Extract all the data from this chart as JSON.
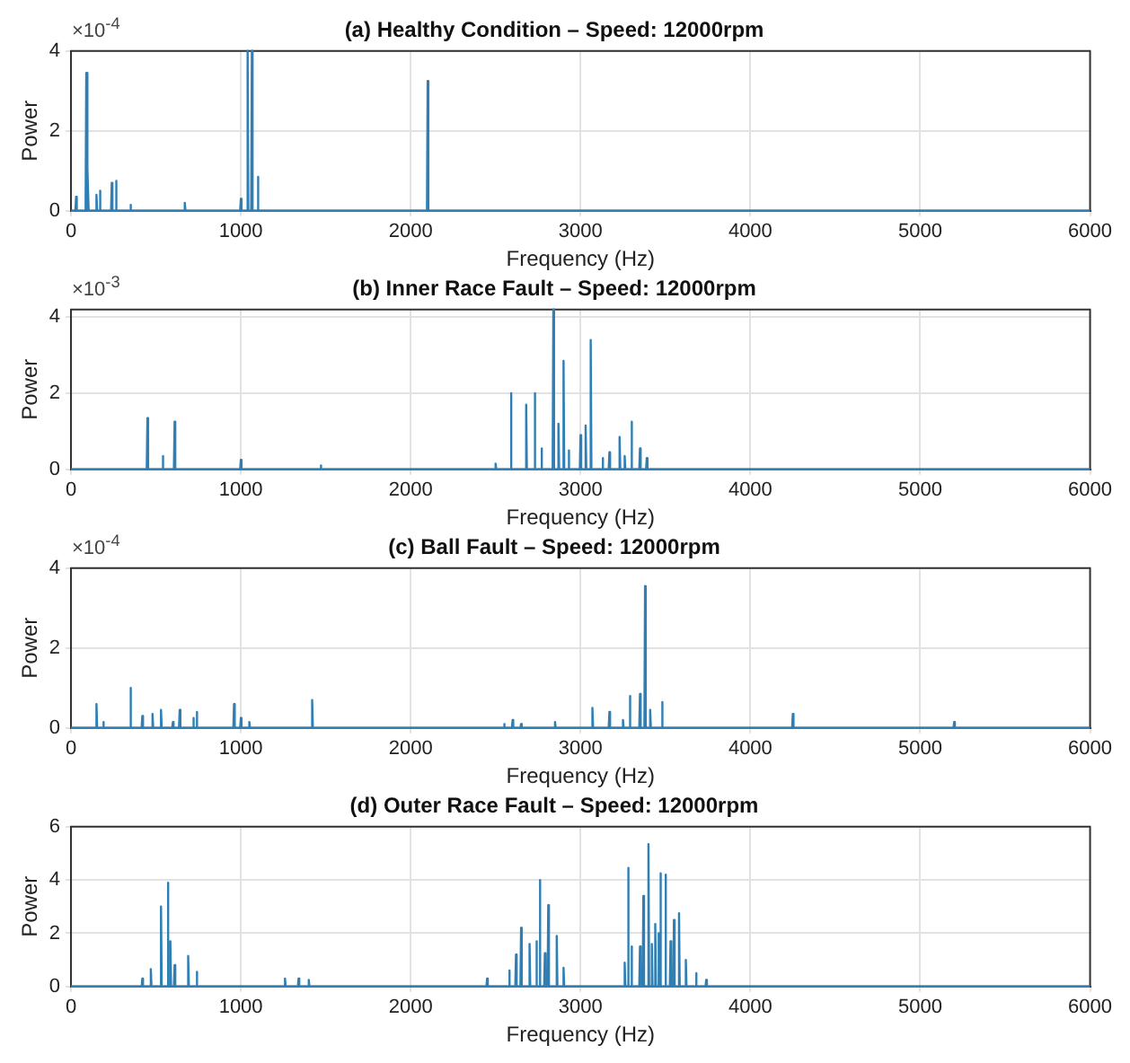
{
  "chart_data": [
    {
      "type": "line",
      "title": "(a) Healthy Condition – Speed: 12000rpm",
      "xlabel": "Frequency (Hz)",
      "ylabel": "Power",
      "annotations": [
        "×10$^{-4}$"
      ],
      "xlim": [
        0,
        6000
      ],
      "xticks": [
        0,
        1000,
        2000,
        3000,
        4000,
        5000,
        6000
      ],
      "ylim": [
        0,
        4
      ],
      "yticks": [
        0,
        2,
        4
      ],
      "grid": true,
      "x": [
        0,
        26,
        30,
        34,
        86,
        90,
        94,
        96,
        100,
        104,
        146,
        150,
        154,
        166,
        170,
        174,
        236,
        240,
        244,
        261,
        265,
        269,
        346,
        350,
        354,
        666,
        670,
        674,
        996,
        1000,
        1004,
        1036,
        1040,
        1044,
        1061,
        1065,
        1069,
        1096,
        1100,
        1104,
        2096,
        2100,
        2104,
        6000
      ],
      "series": [
        {
          "color": "#2f7fb5",
          "values": [
            0,
            0,
            0.35,
            0,
            0,
            3.45,
            0,
            0,
            1.05,
            0,
            0,
            0.4,
            0,
            0,
            0.5,
            0,
            0,
            0.7,
            0,
            0,
            0.75,
            0,
            0,
            0.15,
            0,
            0,
            0.2,
            0,
            0,
            0.3,
            0,
            0,
            4,
            0,
            0,
            4,
            0,
            0,
            0.85,
            0,
            0,
            3.25,
            0,
            0
          ]
        }
      ]
    },
    {
      "type": "line",
      "title": "(b) Inner Race Fault – Speed: 12000rpm",
      "xlabel": "Frequency (Hz)",
      "ylabel": "Power",
      "annotations": [
        "×10$^{-3}$"
      ],
      "xlim": [
        0,
        6000
      ],
      "xticks": [
        0,
        1000,
        2000,
        3000,
        4000,
        5000,
        6000
      ],
      "ylim": [
        0,
        4.2
      ],
      "yticks": [
        0,
        2,
        4
      ],
      "grid": true,
      "x": [
        0,
        446,
        450,
        454,
        536,
        540,
        544,
        606,
        610,
        614,
        996,
        1000,
        1004,
        1466,
        1470,
        1474,
        2496,
        2500,
        2504,
        2586,
        2590,
        2594,
        2676,
        2680,
        2684,
        2726,
        2730,
        2734,
        2766,
        2770,
        2774,
        2836,
        2840,
        2844,
        2866,
        2870,
        2874,
        2896,
        2900,
        2904,
        2926,
        2930,
        2934,
        2996,
        3000,
        3004,
        3026,
        3030,
        3034,
        3056,
        3060,
        3064,
        3126,
        3130,
        3134,
        3166,
        3170,
        3174,
        3226,
        3230,
        3234,
        3256,
        3260,
        3264,
        3296,
        3300,
        3304,
        3346,
        3350,
        3354,
        3386,
        3390,
        3394,
        6000
      ],
      "series": [
        {
          "color": "#2f7fb5",
          "values": [
            0,
            0,
            1.35,
            0,
            0,
            0.35,
            0,
            0,
            1.25,
            0,
            0,
            0.25,
            0,
            0,
            0.1,
            0,
            0,
            0.15,
            0,
            0,
            2.0,
            0,
            0,
            1.7,
            0,
            0,
            2.0,
            0,
            0,
            0.55,
            0,
            0,
            4.2,
            0,
            0,
            1.2,
            0,
            0,
            2.85,
            0,
            0,
            0.5,
            0,
            0,
            0.9,
            0,
            0,
            1.15,
            0,
            0,
            3.4,
            0,
            0,
            0.3,
            0,
            0,
            0.45,
            0,
            0,
            0.85,
            0,
            0,
            0.35,
            0,
            0,
            1.25,
            0,
            0,
            0.55,
            0,
            0,
            0.3,
            0,
            0
          ]
        }
      ]
    },
    {
      "type": "line",
      "title": "(c) Ball Fault – Speed: 12000rpm",
      "xlabel": "Frequency (Hz)",
      "ylabel": "Power",
      "annotations": [
        "×10$^{-4}$"
      ],
      "xlim": [
        0,
        6000
      ],
      "xticks": [
        0,
        1000,
        2000,
        3000,
        4000,
        5000,
        6000
      ],
      "ylim": [
        0,
        4
      ],
      "yticks": [
        0,
        2,
        4
      ],
      "grid": true,
      "x": [
        0,
        146,
        150,
        154,
        186,
        190,
        194,
        346,
        350,
        354,
        416,
        420,
        424,
        476,
        480,
        484,
        526,
        530,
        534,
        596,
        600,
        604,
        636,
        640,
        644,
        716,
        720,
        724,
        736,
        740,
        744,
        956,
        960,
        964,
        996,
        1000,
        1004,
        1046,
        1050,
        1054,
        1416,
        1420,
        1424,
        2546,
        2550,
        2554,
        2596,
        2600,
        2604,
        2646,
        2650,
        2654,
        2846,
        2850,
        2854,
        3066,
        3070,
        3074,
        3166,
        3170,
        3174,
        3246,
        3250,
        3254,
        3286,
        3290,
        3294,
        3346,
        3350,
        3354,
        3376,
        3380,
        3384,
        3406,
        3410,
        3414,
        3476,
        3480,
        3484,
        4246,
        4250,
        4254,
        5196,
        5200,
        5204,
        6000
      ],
      "series": [
        {
          "color": "#2f7fb5",
          "values": [
            0,
            0,
            0.6,
            0,
            0,
            0.15,
            0,
            0,
            1.0,
            0,
            0,
            0.3,
            0,
            0,
            0.35,
            0,
            0,
            0.45,
            0,
            0,
            0.15,
            0,
            0,
            0.45,
            0,
            0,
            0.25,
            0,
            0,
            0.4,
            0,
            0,
            0.6,
            0,
            0,
            0.25,
            0,
            0,
            0.15,
            0,
            0,
            0.7,
            0,
            0,
            0.1,
            0,
            0,
            0.2,
            0,
            0,
            0.1,
            0,
            0,
            0.15,
            0,
            0,
            0.5,
            0,
            0,
            0.4,
            0,
            0,
            0.2,
            0,
            0,
            0.8,
            0,
            0,
            0.85,
            0,
            0,
            3.55,
            0,
            0,
            0.45,
            0,
            0,
            0.65,
            0,
            0,
            0.35,
            0,
            0,
            0.15,
            0,
            0
          ]
        }
      ]
    },
    {
      "type": "line",
      "title": "(d) Outer Race Fault – Speed: 12000rpm",
      "xlabel": "Frequency (Hz)",
      "ylabel": "Power",
      "xlim": [
        0,
        6000
      ],
      "xticks": [
        0,
        1000,
        2000,
        3000,
        4000,
        5000,
        6000
      ],
      "ylim": [
        0,
        6
      ],
      "yticks": [
        0,
        2,
        4,
        6
      ],
      "grid": true,
      "x": [
        0,
        416,
        420,
        424,
        466,
        470,
        474,
        526,
        530,
        534,
        566,
        570,
        574,
        581,
        585,
        589,
        606,
        610,
        614,
        686,
        690,
        694,
        736,
        740,
        744,
        1256,
        1260,
        1264,
        1336,
        1340,
        1344,
        1396,
        1400,
        1404,
        2446,
        2450,
        2454,
        2576,
        2580,
        2584,
        2616,
        2620,
        2624,
        2646,
        2650,
        2654,
        2696,
        2700,
        2704,
        2736,
        2740,
        2744,
        2756,
        2760,
        2764,
        2786,
        2790,
        2794,
        2806,
        2810,
        2814,
        2856,
        2860,
        2864,
        2896,
        2900,
        2904,
        3256,
        3260,
        3264,
        3276,
        3280,
        3284,
        3296,
        3300,
        3304,
        3346,
        3350,
        3354,
        3366,
        3370,
        3374,
        3396,
        3400,
        3404,
        3416,
        3420,
        3424,
        3436,
        3440,
        3444,
        3456,
        3459,
        3462,
        3467,
        3470,
        3474,
        3496,
        3500,
        3504,
        3526,
        3530,
        3534,
        3546,
        3550,
        3554,
        3576,
        3580,
        3584,
        3616,
        3620,
        3624,
        3676,
        3680,
        3684,
        3736,
        3740,
        3744,
        6000
      ],
      "series": [
        {
          "color": "#2f7fb5",
          "values": [
            0,
            0,
            0.3,
            0,
            0,
            0.65,
            0,
            0,
            3.0,
            0,
            0,
            3.9,
            0,
            0,
            1.7,
            0,
            0,
            0.8,
            0,
            0,
            1.15,
            0,
            0,
            0.55,
            0,
            0,
            0.3,
            0,
            0,
            0.3,
            0,
            0,
            0.25,
            0,
            0,
            0.3,
            0,
            0,
            0.6,
            0,
            0,
            1.2,
            0,
            0,
            2.2,
            0,
            0,
            1.6,
            0,
            0,
            1.7,
            0,
            0,
            4.0,
            0,
            0,
            1.25,
            0,
            0,
            3.05,
            0,
            0,
            1.9,
            0,
            0,
            0.7,
            0,
            0,
            0.9,
            0,
            0,
            4.45,
            0,
            0,
            1.5,
            0,
            0,
            1.5,
            0,
            0,
            3.4,
            0,
            0,
            5.35,
            0,
            0,
            1.6,
            0,
            0,
            2.35,
            0,
            0,
            2.0,
            0,
            0,
            4.25,
            0,
            0,
            4.2,
            0,
            0,
            1.7,
            0,
            0,
            2.5,
            0,
            0,
            2.75,
            0,
            0,
            1.0,
            0,
            0,
            0.5,
            0,
            0,
            0.25,
            0,
            0
          ]
        }
      ]
    }
  ]
}
